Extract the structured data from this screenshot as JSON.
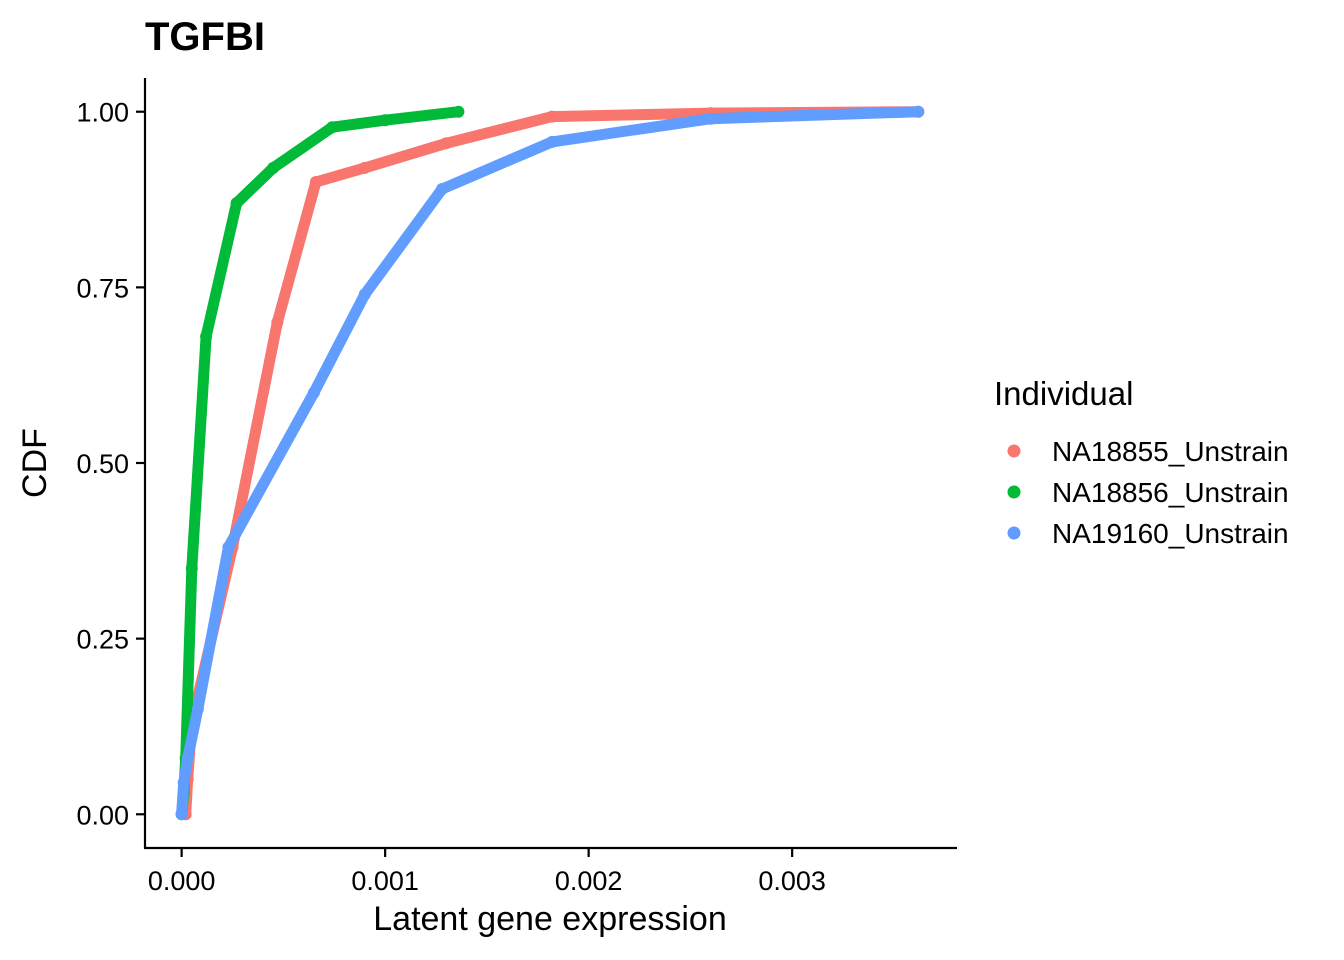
{
  "chart_data": {
    "type": "line",
    "title": "TGFBI",
    "xlabel": "Latent gene expression",
    "ylabel": "CDF",
    "xlim": [
      -0.00018,
      0.00381
    ],
    "ylim": [
      -0.048,
      1.048
    ],
    "x_ticks": [
      0,
      0.001,
      0.002,
      0.003
    ],
    "x_tick_labels": [
      "0.000",
      "0.001",
      "0.002",
      "0.003"
    ],
    "y_ticks": [
      0,
      0.25,
      0.5,
      0.75,
      1
    ],
    "y_tick_labels": [
      "0.00",
      "0.25",
      "0.50",
      "0.75",
      "1.00"
    ],
    "grid": false,
    "legend": {
      "title": "Individual",
      "position": "right"
    },
    "series": [
      {
        "name": "NA18855_Unstrain",
        "color": "#F8766D",
        "points": [
          [
            2e-05,
            0.0
          ],
          [
            3e-05,
            0.05
          ],
          [
            5e-05,
            0.13
          ],
          [
            0.00025,
            0.38
          ],
          [
            0.00047,
            0.7
          ],
          [
            0.00066,
            0.9
          ],
          [
            0.0009,
            0.92
          ],
          [
            0.0013,
            0.955
          ],
          [
            0.00182,
            0.993
          ],
          [
            0.0026,
            0.998
          ],
          [
            0.00362,
            1.0
          ]
        ]
      },
      {
        "name": "NA18856_Unstrain",
        "color": "#00BA38",
        "points": [
          [
            0.0,
            0.0
          ],
          [
            1e-05,
            0.03
          ],
          [
            2e-05,
            0.08
          ],
          [
            5e-05,
            0.35
          ],
          [
            0.00012,
            0.68
          ],
          [
            0.00027,
            0.87
          ],
          [
            0.00045,
            0.92
          ],
          [
            0.00074,
            0.978
          ],
          [
            0.001,
            0.988
          ],
          [
            0.00136,
            1.0
          ]
        ]
      },
      {
        "name": "NA19160_Unstrain",
        "color": "#619CFF",
        "points": [
          [
            0.0,
            0.0
          ],
          [
            1e-05,
            0.045
          ],
          [
            3e-05,
            0.08
          ],
          [
            8e-05,
            0.15
          ],
          [
            0.00023,
            0.38
          ],
          [
            0.00065,
            0.6
          ],
          [
            0.0009,
            0.74
          ],
          [
            0.00128,
            0.89
          ],
          [
            0.00182,
            0.957
          ],
          [
            0.0026,
            0.99
          ],
          [
            0.00362,
            1.0
          ]
        ]
      }
    ]
  }
}
